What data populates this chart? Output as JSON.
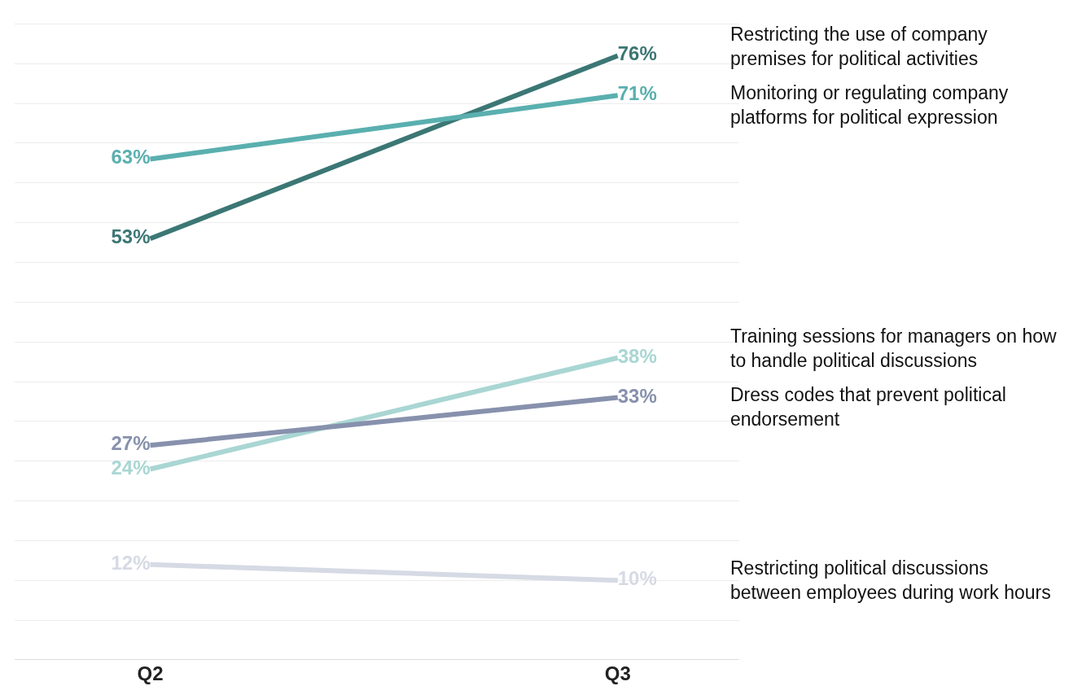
{
  "chart_data": {
    "type": "line",
    "categories": [
      "Q2",
      "Q3"
    ],
    "series": [
      {
        "name": "Restricting the use of company premises for political activities",
        "color": "#3b7774",
        "values": [
          53,
          76
        ],
        "value_labels": [
          "53%",
          "76%"
        ]
      },
      {
        "name": "Monitoring or regulating company platforms for political expression",
        "color": "#5aafaf",
        "values": [
          63,
          71
        ],
        "value_labels": [
          "63%",
          "71%"
        ]
      },
      {
        "name": "Training sessions for managers on how to handle political discussions",
        "color": "#a9d6d3",
        "values": [
          24,
          38
        ],
        "value_labels": [
          "24%",
          "38%"
        ]
      },
      {
        "name": "Dress codes that prevent political endorsement",
        "color": "#8791ad",
        "values": [
          27,
          33
        ],
        "value_labels": [
          "27%",
          "33%"
        ]
      },
      {
        "name": "Restricting political discussions between employees during work hours",
        "color": "#d6dae4",
        "values": [
          12,
          10
        ],
        "value_labels": [
          "12%",
          "10%"
        ]
      }
    ],
    "yticks": [
      {
        "value": 0,
        "label": null
      },
      {
        "value": 5,
        "label": null
      },
      {
        "value": 10,
        "label": null
      },
      {
        "value": 15,
        "label": null
      },
      {
        "value": 20,
        "label": null
      },
      {
        "value": 25,
        "label": null
      },
      {
        "value": 30,
        "label": null
      },
      {
        "value": 35,
        "label": null
      },
      {
        "value": 40,
        "label": null
      },
      {
        "value": 45,
        "label": null
      },
      {
        "value": 50,
        "label": null
      },
      {
        "value": 55,
        "label": null
      },
      {
        "value": 60,
        "label": null
      },
      {
        "value": 65,
        "label": null
      },
      {
        "value": 70,
        "label": null
      },
      {
        "value": 75,
        "label": null
      },
      {
        "value": 80,
        "label": null
      }
    ],
    "grid": "y",
    "tick_labels": "x",
    "legend": false,
    "marker": "none",
    "line_style": "solid"
  }
}
